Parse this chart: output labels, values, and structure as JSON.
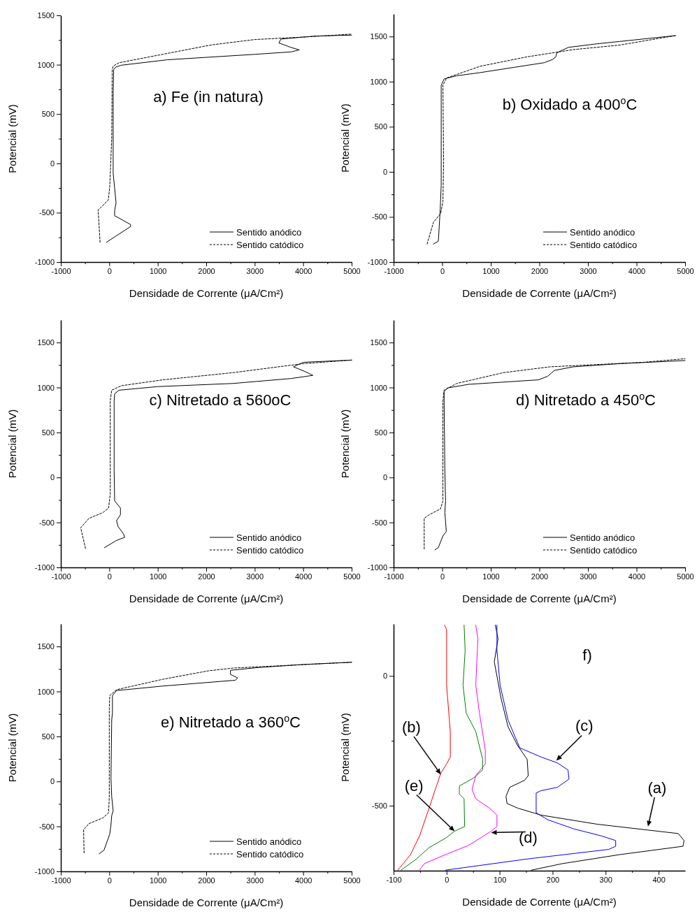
{
  "chart_data": [
    {
      "type": "line",
      "title": "a) Fe (in natura)",
      "xlabel": "Densidade de Corrente (μA/Cm²)",
      "ylabel": "Potencial (mV)",
      "xlim": [
        -1000,
        5000
      ],
      "ylim": [
        -1000,
        1500
      ],
      "xticks": [
        -1000,
        {
          "value": -500,
          "label": null
        },
        0,
        {
          "value": 500,
          "label": null
        },
        1000,
        {
          "value": 1500,
          "label": null
        },
        2000,
        {
          "value": 2500,
          "label": null
        },
        3000,
        {
          "value": 3500,
          "label": null
        },
        4000,
        {
          "value": 4500,
          "label": null
        },
        5000
      ],
      "yticks": [
        -1000,
        {
          "value": -750,
          "label": null
        },
        -500,
        {
          "value": -250,
          "label": null
        },
        0,
        {
          "value": 250,
          "label": null
        },
        500,
        {
          "value": 750,
          "label": null
        },
        1000,
        {
          "value": 1250,
          "label": null
        },
        1500
      ],
      "legend": "bottom right",
      "series": [
        {
          "name": "Sentido anódico",
          "color": "#000000",
          "line_style": "solid",
          "x": [
            -60,
            440,
            440,
            110,
            110,
            140,
            80,
            80,
            90,
            130,
            250,
            1200,
            3000,
            3750,
            3920,
            3750,
            3500,
            3540,
            4000,
            4250,
            5000
          ],
          "values": [
            -800,
            -640,
            -620,
            -530,
            -480,
            -400,
            -100,
            700,
            950,
            975,
            995,
            1050,
            1105,
            1130,
            1150,
            1175,
            1220,
            1260,
            1280,
            1290,
            1300
          ]
        },
        {
          "name": "Sentido catódico",
          "color": "#000000",
          "line_style": "dashed",
          "x": [
            -190,
            -230,
            -180,
            -20,
            10,
            50,
            60,
            80,
            200,
            1100,
            2100,
            3000,
            4000,
            5000
          ],
          "values": [
            -800,
            -470,
            -450,
            -370,
            -230,
            250,
            950,
            985,
            1020,
            1105,
            1200,
            1255,
            1280,
            1310
          ]
        }
      ]
    },
    {
      "type": "line",
      "title": "b) Oxidado a 400$^{o}$C",
      "xlabel": "Densidade de Corrente (μA/Cm²)",
      "ylabel": "Potencial (mV)",
      "xlim": [
        -1000,
        5000
      ],
      "ylim": [
        -1000,
        1750
      ],
      "xticks": [
        -1000,
        {
          "value": -500,
          "label": null
        },
        0,
        {
          "value": 500,
          "label": null
        },
        1000,
        {
          "value": 1500,
          "label": null
        },
        2000,
        {
          "value": 2500,
          "label": null
        },
        3000,
        {
          "value": 3500,
          "label": null
        },
        4000,
        {
          "value": 4500,
          "label": null
        },
        5000
      ],
      "yticks": [
        -1000,
        {
          "value": -750,
          "label": null
        },
        -500,
        {
          "value": -250,
          "label": null
        },
        0,
        {
          "value": 250,
          "label": null
        },
        500,
        {
          "value": 750,
          "label": null
        },
        1000,
        {
          "value": 1250,
          "label": null
        },
        1500
      ],
      "legend": "bottom right",
      "series": [
        {
          "name": "Sentido anódico",
          "color": "#000000",
          "line_style": "solid",
          "x": [
            -180,
            -80,
            -70,
            -40,
            -20,
            -20,
            40,
            300,
            780,
            1500,
            2100,
            2270,
            2340,
            2360,
            2600,
            3200,
            3650,
            4800
          ],
          "values": [
            -800,
            -770,
            -690,
            -410,
            -150,
            960,
            1030,
            1065,
            1100,
            1160,
            1210,
            1245,
            1275,
            1320,
            1380,
            1420,
            1445,
            1510
          ]
        },
        {
          "name": "Sentido catódico",
          "color": "#000000",
          "line_style": "dashed",
          "x": [
            -310,
            -180,
            -30,
            15,
            30,
            15,
            90,
            780,
            1750,
            2700,
            3650,
            4800
          ],
          "values": [
            -800,
            -560,
            -460,
            -330,
            110,
            960,
            1040,
            1170,
            1275,
            1355,
            1405,
            1510
          ]
        }
      ]
    },
    {
      "type": "line",
      "title": "c) Nitretado a 560oC",
      "xlabel": "Densidade de Corrente (μA/Cm²)",
      "ylabel": "Potencial (mV)",
      "xlim": [
        -1000,
        5000
      ],
      "ylim": [
        -1000,
        1750
      ],
      "xticks": [
        -1000,
        {
          "value": -500,
          "label": null
        },
        0,
        {
          "value": 500,
          "label": null
        },
        1000,
        {
          "value": 1500,
          "label": null
        },
        2000,
        {
          "value": 2500,
          "label": null
        },
        3000,
        {
          "value": 3500,
          "label": null
        },
        4000,
        {
          "value": 4500,
          "label": null
        },
        5000
      ],
      "yticks": [
        -1000,
        {
          "value": -750,
          "label": null
        },
        -500,
        {
          "value": -250,
          "label": null
        },
        0,
        {
          "value": 250,
          "label": null
        },
        500,
        {
          "value": 750,
          "label": null
        },
        1000,
        {
          "value": 1250,
          "label": null
        },
        1500
      ],
      "legend": "bottom right",
      "series": [
        {
          "name": "Sentido anódico",
          "color": "#000000",
          "line_style": "solid",
          "x": [
            -100,
            150,
            320,
            290,
            180,
            150,
            230,
            230,
            110,
            100,
            100,
            110,
            200,
            1000,
            2550,
            3750,
            4200,
            4050,
            3800,
            4000,
            5000
          ],
          "values": [
            -780,
            -700,
            -665,
            -625,
            -545,
            -480,
            -415,
            -340,
            -260,
            75,
            850,
            930,
            970,
            1010,
            1045,
            1100,
            1135,
            1175,
            1230,
            1280,
            1305
          ]
        },
        {
          "name": "Sentido catódico",
          "color": "#000000",
          "line_style": "dashed",
          "x": [
            -490,
            -590,
            -420,
            -130,
            -15,
            20,
            20,
            50,
            250,
            1100,
            2550,
            4000,
            5000
          ],
          "values": [
            -790,
            -560,
            -455,
            -390,
            -340,
            -185,
            850,
            970,
            1020,
            1085,
            1165,
            1265,
            1305
          ]
        }
      ]
    },
    {
      "type": "line",
      "title": "d) Nitretado a 450$^{o}$C",
      "xlabel": "Densidade de Corrente (μA/Cm²)",
      "ylabel": "Potencial (mV)",
      "xlim": [
        -1000,
        5000
      ],
      "ylim": [
        -1000,
        1750
      ],
      "xticks": [
        -1000,
        {
          "value": -500,
          "label": null
        },
        0,
        {
          "value": 500,
          "label": null
        },
        1000,
        {
          "value": 1500,
          "label": null
        },
        2000,
        {
          "value": 2500,
          "label": null
        },
        3000,
        {
          "value": 3500,
          "label": null
        },
        4000,
        {
          "value": 4500,
          "label": null
        },
        5000
      ],
      "yticks": [
        -1000,
        {
          "value": -750,
          "label": null
        },
        -500,
        {
          "value": -250,
          "label": null
        },
        0,
        {
          "value": 250,
          "label": null
        },
        500,
        {
          "value": 750,
          "label": null
        },
        1000,
        {
          "value": 1250,
          "label": null
        },
        1500
      ],
      "legend": "bottom right",
      "series": [
        {
          "name": "Sentido anódico",
          "color": "#000000",
          "line_style": "solid",
          "x": [
            -150,
            -80,
            15,
            85,
            70,
            55,
            70,
            55,
            40,
            40,
            110,
            540,
            1980,
            2170,
            2310,
            2700,
            3650,
            5000
          ],
          "values": [
            -805,
            -780,
            -650,
            -600,
            -495,
            -390,
            -260,
            75,
            850,
            955,
            995,
            1035,
            1085,
            1125,
            1190,
            1230,
            1265,
            1300
          ]
        },
        {
          "name": "Sentido catódico",
          "color": "#000000",
          "line_style": "dashed",
          "x": [
            -370,
            -370,
            -270,
            -35,
            15,
            15,
            40,
            300,
            1260,
            2220,
            4130,
            5000
          ],
          "values": [
            -795,
            -455,
            -415,
            -350,
            -260,
            850,
            970,
            1045,
            1165,
            1230,
            1280,
            1320
          ]
        }
      ]
    },
    {
      "type": "line",
      "title": "e) Nitretado a 360$^{o}$C",
      "xlabel": "Densidade de Corrente (μA/Cm²)",
      "ylabel": "Potencial (mV)",
      "xlim": [
        -1000,
        5000
      ],
      "ylim": [
        -1000,
        1750
      ],
      "xticks": [
        -1000,
        {
          "value": -500,
          "label": null
        },
        0,
        {
          "value": 500,
          "label": null
        },
        1000,
        {
          "value": 1500,
          "label": null
        },
        2000,
        {
          "value": 2500,
          "label": null
        },
        3000,
        {
          "value": 3500,
          "label": null
        },
        4000,
        {
          "value": 4500,
          "label": null
        },
        5000
      ],
      "yticks": [
        -1000,
        {
          "value": -750,
          "label": null
        },
        -500,
        {
          "value": -250,
          "label": null
        },
        0,
        {
          "value": 250,
          "label": null
        },
        500,
        {
          "value": 750,
          "label": null
        },
        1000,
        {
          "value": 1250,
          "label": null
        },
        1500
      ],
      "legend": "bottom right",
      "series": [
        {
          "name": "Sentido anódico",
          "color": "#000000",
          "line_style": "solid",
          "x": [
            -210,
            -110,
            10,
            35,
            50,
            80,
            50,
            35,
            50,
            65,
            65,
            150,
            1100,
            2600,
            2650,
            2500,
            2500,
            3050,
            4000,
            5000
          ],
          "values": [
            -805,
            -765,
            -585,
            -480,
            -380,
            -325,
            -170,
            35,
            685,
            760,
            955,
            1010,
            1060,
            1125,
            1150,
            1190,
            1235,
            1265,
            1300,
            1325
          ]
        },
        {
          "name": "Sentido catódico",
          "color": "#000000",
          "line_style": "dashed",
          "x": [
            -520,
            -530,
            -420,
            -130,
            -15,
            0,
            0,
            10,
            150,
            1100,
            2050,
            2550,
            5000
          ],
          "values": [
            -795,
            -535,
            -470,
            -405,
            -350,
            -170,
            815,
            955,
            1020,
            1135,
            1230,
            1260,
            1325
          ]
        }
      ]
    },
    {
      "type": "line",
      "title": "f)",
      "xlabel": "Densidade de Corrente (μA/Cm²)",
      "ylabel": "Potencial (mV)",
      "xlim": [
        -100,
        450
      ],
      "ylim": [
        -750,
        200
      ],
      "xticks": [
        -100,
        {
          "value": -50,
          "label": null
        },
        0,
        {
          "value": 50,
          "label": null
        },
        100,
        {
          "value": 150,
          "label": null
        },
        200,
        {
          "value": 250,
          "label": null
        },
        300,
        {
          "value": 350,
          "label": null
        },
        400
      ],
      "yticks": [
        -500,
        {
          "value": -250,
          "label": null
        },
        0
      ],
      "annotations": [
        {
          "text": "(a)",
          "x": 380,
          "y": -580
        },
        {
          "text": "(b)",
          "x": -11,
          "y": -379
        },
        {
          "text": "(c)",
          "x": 207,
          "y": -326
        },
        {
          "text": "(d)",
          "x": 84,
          "y": -603
        },
        {
          "text": "(e)",
          "x": 15,
          "y": -598
        }
      ],
      "series": [
        {
          "color": "#000000",
          "x": [
            92,
            97,
            90,
            103,
            116,
            134,
            152,
            154,
            147,
            119,
            112,
            114,
            134,
            178,
            284,
            437,
            448,
            446,
            327,
            218,
            160
          ],
          "values": [
            196,
            143,
            54,
            -89,
            -196,
            -268,
            -321,
            -384,
            -402,
            -429,
            -464,
            -491,
            -509,
            -536,
            -571,
            -607,
            -634,
            -656,
            -688,
            -723,
            -748
          ]
        },
        {
          "color": "#ff0000",
          "x": [
            -4,
            0,
            0,
            7,
            7,
            0,
            -11,
            -20,
            -33,
            -51,
            -68,
            -92
          ],
          "values": [
            196,
            179,
            -36,
            -214,
            -312,
            -339,
            -375,
            -429,
            -509,
            -616,
            -688,
            -748
          ]
        },
        {
          "color": "#0000ff",
          "x": [
            95,
            95,
            101,
            116,
            138,
            178,
            209,
            229,
            231,
            209,
            178,
            169,
            169,
            191,
            240,
            292,
            319,
            319,
            306,
            152,
            -2
          ],
          "values": [
            196,
            98,
            -36,
            -170,
            -277,
            -312,
            -335,
            -362,
            -397,
            -429,
            -442,
            -451,
            -527,
            -554,
            -589,
            -616,
            -634,
            -656,
            -668,
            -705,
            -748
          ]
        },
        {
          "color": "#ff00ff",
          "x": [
            55,
            59,
            55,
            62,
            73,
            73,
            55,
            48,
            55,
            81,
            95,
            95,
            84,
            42,
            -2,
            -42,
            -51
          ],
          "values": [
            196,
            143,
            -36,
            -143,
            -286,
            -339,
            -384,
            -437,
            -473,
            -509,
            -536,
            -580,
            -598,
            -652,
            -688,
            -723,
            -748
          ]
        },
        {
          "color": "#008000",
          "x": [
            33,
            35,
            31,
            37,
            55,
            68,
            68,
            51,
            24,
            24,
            33,
            34,
            15,
            -2,
            -33,
            -57,
            -86
          ],
          "values": [
            196,
            98,
            -36,
            -143,
            -214,
            -321,
            -362,
            -393,
            -424,
            -455,
            -473,
            -580,
            -598,
            -625,
            -661,
            -705,
            -748
          ]
        }
      ]
    }
  ]
}
